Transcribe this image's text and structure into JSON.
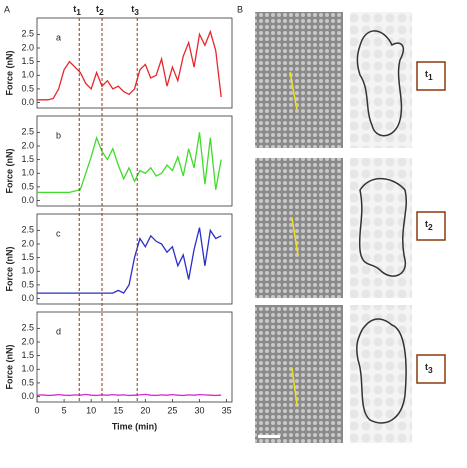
{
  "panel_labels": [
    "A",
    "B"
  ],
  "markers": [
    {
      "x": 7.8,
      "label": "t",
      "sub": "1"
    },
    {
      "x": 12,
      "label": "t",
      "sub": "2"
    },
    {
      "x": 18.5,
      "label": "t",
      "sub": "3"
    }
  ],
  "chart_data": [
    {
      "type": "line",
      "label": "a",
      "ylabel": "Force (nN)",
      "xlim": [
        0,
        36
      ],
      "ylim": [
        -0.2,
        3.1
      ],
      "yticks": [
        {
          "value": 0,
          "label": "0.0"
        },
        {
          "value": 0.5,
          "label": "0.5"
        },
        {
          "value": 1,
          "label": "1.0"
        },
        {
          "value": 1.5,
          "label": "1.5"
        },
        {
          "value": 2,
          "label": "2.0"
        },
        {
          "value": 2.5,
          "label": "2.5"
        }
      ],
      "x": [
        0,
        1,
        2,
        3,
        4,
        5,
        6,
        7,
        8,
        9,
        10,
        11,
        12,
        13,
        14,
        15,
        16,
        17,
        18,
        19,
        20,
        21,
        22,
        23,
        24,
        25,
        26,
        27,
        28,
        29,
        30,
        31,
        32,
        33,
        34
      ],
      "series": [
        {
          "color": "#e8262b",
          "values": [
            0.1,
            0.1,
            0.1,
            0.15,
            0.5,
            1.2,
            1.5,
            1.3,
            1.1,
            0.7,
            0.5,
            1.1,
            0.6,
            0.8,
            0.5,
            0.6,
            0.4,
            0.3,
            0.5,
            1.2,
            1.4,
            0.9,
            1.0,
            1.6,
            0.6,
            1.3,
            0.8,
            1.7,
            2.2,
            1.3,
            2.5,
            2.1,
            2.6,
            1.9,
            0.2
          ]
        }
      ]
    },
    {
      "type": "line",
      "label": "b",
      "ylabel": "Force (nN)",
      "xlim": [
        0,
        36
      ],
      "ylim": [
        -0.2,
        3.1
      ],
      "yticks": [
        {
          "value": 0,
          "label": "0.0"
        },
        {
          "value": 0.5,
          "label": "0.5"
        },
        {
          "value": 1,
          "label": "1.0"
        },
        {
          "value": 1.5,
          "label": "1.5"
        },
        {
          "value": 2,
          "label": "2.0"
        },
        {
          "value": 2.5,
          "label": "2.5"
        }
      ],
      "x": [
        0,
        1,
        2,
        3,
        4,
        5,
        6,
        7,
        8,
        9,
        10,
        11,
        12,
        13,
        14,
        15,
        16,
        17,
        18,
        19,
        20,
        21,
        22,
        23,
        24,
        25,
        26,
        27,
        28,
        29,
        30,
        31,
        32,
        33,
        34
      ],
      "series": [
        {
          "color": "#3fdc2a",
          "values": [
            0.3,
            0.3,
            0.3,
            0.3,
            0.3,
            0.3,
            0.3,
            0.35,
            0.4,
            1.0,
            1.6,
            2.3,
            1.8,
            1.5,
            1.9,
            1.3,
            0.8,
            1.2,
            0.7,
            1.1,
            1.0,
            1.2,
            0.9,
            1.0,
            1.3,
            1.1,
            1.6,
            0.9,
            1.9,
            1.2,
            2.5,
            0.6,
            2.3,
            0.4,
            1.5
          ]
        }
      ]
    },
    {
      "type": "line",
      "label": "c",
      "ylabel": "Force (nN)",
      "xlim": [
        0,
        36
      ],
      "ylim": [
        -0.2,
        3.1
      ],
      "yticks": [
        {
          "value": 0,
          "label": "0.0"
        },
        {
          "value": 0.5,
          "label": "0.5"
        },
        {
          "value": 1,
          "label": "1.0"
        },
        {
          "value": 1.5,
          "label": "1.5"
        },
        {
          "value": 2,
          "label": "2.0"
        },
        {
          "value": 2.5,
          "label": "2.5"
        }
      ],
      "x": [
        0,
        1,
        2,
        3,
        4,
        5,
        6,
        7,
        8,
        9,
        10,
        11,
        12,
        13,
        14,
        15,
        16,
        17,
        18,
        19,
        20,
        21,
        22,
        23,
        24,
        25,
        26,
        27,
        28,
        29,
        30,
        31,
        32,
        33,
        34
      ],
      "series": [
        {
          "color": "#2a2fc8",
          "values": [
            0.2,
            0.2,
            0.2,
            0.2,
            0.2,
            0.2,
            0.2,
            0.2,
            0.2,
            0.2,
            0.2,
            0.2,
            0.2,
            0.2,
            0.2,
            0.3,
            0.2,
            0.5,
            1.5,
            2.2,
            1.9,
            2.3,
            2.1,
            2.0,
            1.7,
            1.9,
            1.2,
            1.6,
            0.7,
            1.8,
            2.6,
            1.2,
            2.5,
            2.2,
            2.3
          ]
        }
      ]
    },
    {
      "type": "line",
      "label": "d",
      "ylabel": "Force (nN)",
      "xlabel": "Time (min)",
      "xlim": [
        0,
        36
      ],
      "ylim": [
        -0.2,
        3.1
      ],
      "xticks": [
        0,
        5,
        10,
        15,
        20,
        25,
        30,
        35
      ],
      "yticks": [
        {
          "value": 0,
          "label": "0.0"
        },
        {
          "value": 0.5,
          "label": "0.5"
        },
        {
          "value": 1,
          "label": "1.0"
        },
        {
          "value": 1.5,
          "label": "1.5"
        },
        {
          "value": 2,
          "label": "2.0"
        },
        {
          "value": 2.5,
          "label": "2.5"
        }
      ],
      "x": [
        0,
        1,
        2,
        3,
        4,
        5,
        6,
        7,
        8,
        9,
        10,
        11,
        12,
        13,
        14,
        15,
        16,
        17,
        18,
        19,
        20,
        21,
        22,
        23,
        24,
        25,
        26,
        27,
        28,
        29,
        30,
        31,
        32,
        33,
        34
      ],
      "series": [
        {
          "color": "#d62ad0",
          "values": [
            0.05,
            0.06,
            0.04,
            0.05,
            0.07,
            0.05,
            0.04,
            0.06,
            0.05,
            0.08,
            0.05,
            0.04,
            0.06,
            0.05,
            0.07,
            0.05,
            0.06,
            0.04,
            0.05,
            0.06,
            0.08,
            0.05,
            0.04,
            0.06,
            0.05,
            0.07,
            0.05,
            0.04,
            0.06,
            0.05,
            0.07,
            0.06,
            0.05,
            0.04,
            0.05
          ]
        }
      ]
    }
  ],
  "image_labels": [
    {
      "label": "t",
      "sub": "1"
    },
    {
      "label": "t",
      "sub": "2"
    },
    {
      "label": "t",
      "sub": "3"
    }
  ]
}
